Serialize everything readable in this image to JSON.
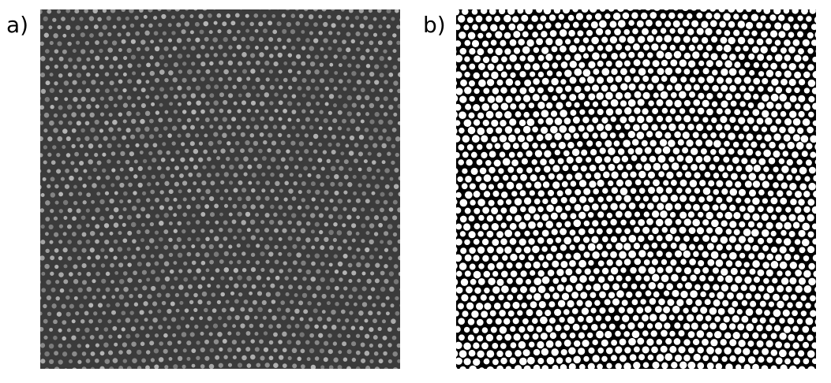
{
  "panels": [
    {
      "label": "a)",
      "kind": "grayscale-micrograph",
      "background_color": "#3b3b3b",
      "dot_color": "#bdbdbd"
    },
    {
      "label": "b)",
      "kind": "binary-thresholded",
      "background_color": "#000000",
      "dot_color": "#ffffff"
    }
  ]
}
